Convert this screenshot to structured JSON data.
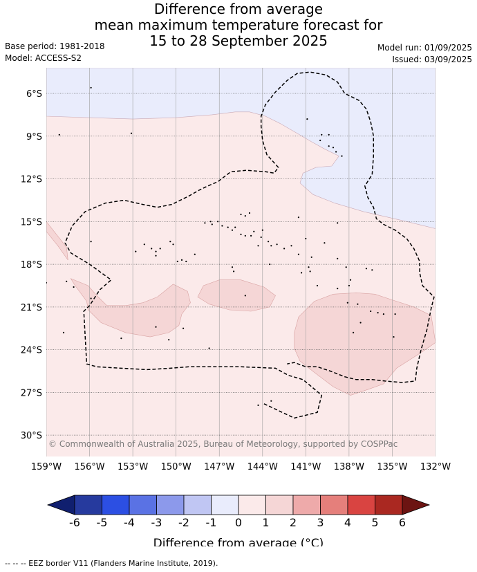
{
  "title": {
    "line1": "Difference from average",
    "line2": "mean maximum temperature forecast for",
    "line3": "15 to 28 September 2025"
  },
  "meta": {
    "base_period": "Base period: 1981-2018",
    "model": "Model: ACCESS-S2",
    "model_run": "Model run: 01/09/2025",
    "issued": "Issued: 03/09/2025"
  },
  "map": {
    "lon_range": [
      -159,
      -132
    ],
    "lat_range": [
      -31.5,
      -4.2
    ],
    "longitude_ticks": [
      {
        "value": -159,
        "label": "159°W"
      },
      {
        "value": -156,
        "label": "156°W"
      },
      {
        "value": -153,
        "label": "153°W"
      },
      {
        "value": -150,
        "label": "150°W"
      },
      {
        "value": -147,
        "label": "147°W"
      },
      {
        "value": -144,
        "label": "144°W"
      },
      {
        "value": -141,
        "label": "141°W"
      },
      {
        "value": -138,
        "label": "138°W"
      },
      {
        "value": -135,
        "label": "135°W"
      },
      {
        "value": -132,
        "label": "132°W"
      }
    ],
    "latitude_ticks": [
      {
        "value": -6,
        "label": "6°S"
      },
      {
        "value": -9,
        "label": "9°S"
      },
      {
        "value": -12,
        "label": "12°S"
      },
      {
        "value": -15,
        "label": "15°S"
      },
      {
        "value": -18,
        "label": "18°S"
      },
      {
        "value": -21,
        "label": "21°S"
      },
      {
        "value": -24,
        "label": "24°S"
      },
      {
        "value": -27,
        "label": "27°S"
      },
      {
        "value": -30,
        "label": "30°S"
      }
    ],
    "copyright": "© Commonwealth of Australia 2025, Bureau of Meteorology, supported by COSPPac",
    "background_color": "#fbeaea",
    "cool_region_color": "#e9ecfc",
    "warm_region_color": "#f5d6d6",
    "cool_regions": [
      {
        "anomaly": "-1 to 0",
        "outline": [
          [
            -159,
            -4.2
          ],
          [
            -132,
            -4.2
          ],
          [
            -132,
            -15.5
          ],
          [
            -134,
            -15
          ],
          [
            -137,
            -14.3
          ],
          [
            -139,
            -13.7
          ],
          [
            -140.5,
            -13.1
          ],
          [
            -141.4,
            -12.3
          ],
          [
            -141.2,
            -11.6
          ],
          [
            -140.3,
            -11.2
          ],
          [
            -139.2,
            -11.1
          ],
          [
            -138.7,
            -10.4
          ],
          [
            -139.7,
            -9.9
          ],
          [
            -140.6,
            -9.4
          ],
          [
            -141.6,
            -8.8
          ],
          [
            -142.8,
            -8.1
          ],
          [
            -143.8,
            -7.6
          ],
          [
            -144.9,
            -7.3
          ],
          [
            -145.9,
            -7.3
          ],
          [
            -147.5,
            -7.5
          ],
          [
            -150,
            -7.7
          ],
          [
            -153,
            -7.8
          ],
          [
            -156,
            -7.7
          ],
          [
            -159,
            -7.6
          ]
        ]
      }
    ],
    "warm_regions": [
      {
        "anomaly": "0 to 1",
        "outline": [
          [
            -159,
            -15
          ],
          [
            -157.6,
            -16.8
          ],
          [
            -157.5,
            -17.7
          ],
          [
            -158.2,
            -16.7
          ],
          [
            -159,
            -15.7
          ]
        ]
      },
      {
        "anomaly": "1 to 2",
        "outline": [
          [
            -157.3,
            -19
          ],
          [
            -157,
            -19.5
          ],
          [
            -156.2,
            -20.6
          ],
          [
            -156.1,
            -21.2
          ],
          [
            -155.2,
            -22.1
          ],
          [
            -153.5,
            -22.8
          ],
          [
            -151.8,
            -23.1
          ],
          [
            -150.5,
            -22.8
          ],
          [
            -149.8,
            -22.3
          ],
          [
            -149.6,
            -21.5
          ],
          [
            -149,
            -20.7
          ],
          [
            -149.2,
            -19.9
          ],
          [
            -150.2,
            -19.4
          ],
          [
            -151.3,
            -20.3
          ],
          [
            -152.3,
            -20.7
          ],
          [
            -153.5,
            -20.9
          ],
          [
            -154.8,
            -20.9
          ],
          [
            -155.5,
            -20.2
          ],
          [
            -156.1,
            -19.5
          ]
        ]
      },
      {
        "anomaly": "1 to 2",
        "outline": [
          [
            -148.5,
            -20.3
          ],
          [
            -147.7,
            -20.8
          ],
          [
            -146.3,
            -21.2
          ],
          [
            -144.8,
            -21.3
          ],
          [
            -143.5,
            -21
          ],
          [
            -143.1,
            -20.2
          ],
          [
            -143.9,
            -19.6
          ],
          [
            -145.5,
            -19.1
          ],
          [
            -147,
            -19.1
          ],
          [
            -148.1,
            -19.5
          ]
        ]
      },
      {
        "anomaly": "1 to 2",
        "outline": [
          [
            -141.5,
            -21.7
          ],
          [
            -140.4,
            -20.6
          ],
          [
            -139.1,
            -20.1
          ],
          [
            -137.5,
            -20
          ],
          [
            -136.2,
            -20.1
          ],
          [
            -135,
            -20.5
          ],
          [
            -133.5,
            -21
          ],
          [
            -132.3,
            -21.6
          ],
          [
            -132,
            -23.5
          ],
          [
            -133,
            -24.2
          ],
          [
            -134.7,
            -25.3
          ],
          [
            -135.6,
            -26.4
          ],
          [
            -136.7,
            -26.8
          ],
          [
            -137.9,
            -27.2
          ],
          [
            -139.1,
            -26.6
          ],
          [
            -140.4,
            -25.6
          ],
          [
            -141.4,
            -24.8
          ],
          [
            -141.8,
            -23.9
          ],
          [
            -141.8,
            -22.8
          ]
        ]
      }
    ],
    "eez_borders": [
      {
        "name": "French Polynesia EEZ",
        "outline": [
          [
            -143.9,
            -27.8
          ],
          [
            -141.8,
            -28.8
          ],
          [
            -140.2,
            -28.4
          ],
          [
            -139.9,
            -27.2
          ],
          [
            -140.6,
            -26.6
          ],
          [
            -141.2,
            -26.1
          ],
          [
            -142.2,
            -25.8
          ],
          [
            -143.1,
            -25.3
          ],
          [
            -145.5,
            -25.2
          ],
          [
            -147.5,
            -25.2
          ],
          [
            -149.1,
            -25.2
          ],
          [
            -150.4,
            -25.3
          ],
          [
            -152,
            -25.4
          ],
          [
            -153.8,
            -25.3
          ],
          [
            -155.5,
            -25.2
          ],
          [
            -156.2,
            -25
          ],
          [
            -156.4,
            -21.3
          ],
          [
            -156,
            -20.9
          ],
          [
            -155.3,
            -19.8
          ],
          [
            -154.5,
            -19.1
          ],
          [
            -156,
            -18
          ],
          [
            -157.3,
            -17.2
          ],
          [
            -157.7,
            -16.5
          ],
          [
            -157.2,
            -15.3
          ],
          [
            -156.3,
            -14.3
          ],
          [
            -154.9,
            -13.7
          ],
          [
            -153.6,
            -13.5
          ],
          [
            -152.3,
            -13.8
          ],
          [
            -151.3,
            -14
          ],
          [
            -150.3,
            -13.8
          ],
          [
            -149.1,
            -13.2
          ],
          [
            -148.4,
            -12.8
          ],
          [
            -147.8,
            -12.5
          ],
          [
            -147.1,
            -12.2
          ],
          [
            -146.2,
            -11.5
          ],
          [
            -145.1,
            -11.4
          ],
          [
            -143.8,
            -11.5
          ],
          [
            -143.2,
            -11.6
          ],
          [
            -142.9,
            -11.2
          ],
          [
            -143.7,
            -10.3
          ],
          [
            -144,
            -9.3
          ],
          [
            -144.1,
            -8.3
          ],
          [
            -144.1,
            -7.6
          ],
          [
            -143.8,
            -6.8
          ],
          [
            -143.1,
            -5.9
          ],
          [
            -142.3,
            -5.1
          ],
          [
            -141.6,
            -4.6
          ],
          [
            -140.7,
            -4.5
          ],
          [
            -139.6,
            -4.7
          ],
          [
            -138.8,
            -5.2
          ],
          [
            -138.3,
            -6
          ],
          [
            -137.3,
            -6.5
          ],
          [
            -136.8,
            -7.1
          ],
          [
            -136.5,
            -8
          ],
          [
            -136.3,
            -9
          ],
          [
            -136.3,
            -10.4
          ],
          [
            -136.4,
            -11.7
          ],
          [
            -136.9,
            -12.5
          ],
          [
            -136.7,
            -13.3
          ],
          [
            -136.3,
            -14
          ],
          [
            -136.1,
            -14.8
          ],
          [
            -135.6,
            -15.2
          ],
          [
            -134.8,
            -15.6
          ],
          [
            -134,
            -16.2
          ],
          [
            -133.5,
            -16.9
          ],
          [
            -133.1,
            -17.8
          ],
          [
            -133.1,
            -18.6
          ],
          [
            -132.9,
            -19.5
          ],
          [
            -132.1,
            -20.3
          ],
          [
            -132.3,
            -21.1
          ],
          [
            -132.6,
            -22.6
          ],
          [
            -133,
            -24
          ],
          [
            -133.3,
            -25.3
          ],
          [
            -133.4,
            -26.2
          ],
          [
            -134.3,
            -26.3
          ],
          [
            -135.5,
            -26.2
          ],
          [
            -136.4,
            -26.1
          ],
          [
            -137.5,
            -26.1
          ],
          [
            -138.3,
            -25.9
          ],
          [
            -139.3,
            -25.5
          ],
          [
            -140.2,
            -25.2
          ],
          [
            -141,
            -25.2
          ],
          [
            -141.8,
            -24.9
          ],
          [
            -142.3,
            -25
          ]
        ]
      }
    ],
    "islands": [
      [
        -155.9,
        -5.6
      ],
      [
        -153.1,
        -8.8
      ],
      [
        -158.1,
        -8.9
      ],
      [
        -155.9,
        -16.4
      ],
      [
        -152.2,
        -16.6
      ],
      [
        -151.7,
        -16.9
      ],
      [
        -151.4,
        -17.1
      ],
      [
        -151.1,
        -16.9
      ],
      [
        -150.4,
        -16.4
      ],
      [
        -150.2,
        -16.6
      ],
      [
        -151.4,
        -17.4
      ],
      [
        -152.8,
        -17.1
      ],
      [
        -149.9,
        -17.8
      ],
      [
        -149.6,
        -17.7
      ],
      [
        -149.3,
        -17.8
      ],
      [
        -148.7,
        -17.3
      ],
      [
        -148,
        -15.1
      ],
      [
        -147.5,
        -15.2
      ],
      [
        -147.6,
        -15
      ],
      [
        -147.1,
        -15
      ],
      [
        -146.8,
        -15.3
      ],
      [
        -146.4,
        -15.4
      ],
      [
        -146.1,
        -15.6
      ],
      [
        -145.9,
        -15.4
      ],
      [
        -145.5,
        -15.9
      ],
      [
        -145.2,
        -16
      ],
      [
        -145.5,
        -14.5
      ],
      [
        -145.2,
        -14.6
      ],
      [
        -144.9,
        -14.4
      ],
      [
        -144.6,
        -15.7
      ],
      [
        -144.8,
        -16
      ],
      [
        -144.1,
        -16.1
      ],
      [
        -144.3,
        -16.7
      ],
      [
        -144,
        -15.6
      ],
      [
        -143.6,
        -16.4
      ],
      [
        -143.4,
        -16.7
      ],
      [
        -143,
        -16.6
      ],
      [
        -142.5,
        -16.9
      ],
      [
        -142,
        -16.7
      ],
      [
        -141.5,
        -17.3
      ],
      [
        -141,
        -16.2
      ],
      [
        -140.6,
        -17.5
      ],
      [
        -140.8,
        -18.2
      ],
      [
        -140.7,
        -18.5
      ],
      [
        -141.3,
        -18.6
      ],
      [
        -140.2,
        -19.5
      ],
      [
        -139.7,
        -16.5
      ],
      [
        -138.8,
        -17.6
      ],
      [
        -138.2,
        -18.2
      ],
      [
        -137.9,
        -19.1
      ],
      [
        -138,
        -19.5
      ],
      [
        -138.8,
        -19.7
      ],
      [
        -137.4,
        -20.8
      ],
      [
        -138.1,
        -20.7
      ],
      [
        -137.2,
        -22.1
      ],
      [
        -137.7,
        -22.8
      ],
      [
        -136.5,
        -21.3
      ],
      [
        -136,
        -21.4
      ],
      [
        -135.6,
        -21.5
      ],
      [
        -134.8,
        -21.5
      ],
      [
        -134.9,
        -23.1
      ],
      [
        -136.8,
        -18.3
      ],
      [
        -136.4,
        -18.4
      ],
      [
        -141.5,
        -14.7
      ],
      [
        -138.8,
        -15.1
      ],
      [
        -145.2,
        -20.2
      ],
      [
        -144.3,
        -27.9
      ],
      [
        -143.4,
        -27.6
      ],
      [
        -151.4,
        -22.4
      ],
      [
        -149.5,
        -22.5
      ],
      [
        -147.7,
        -23.9
      ],
      [
        -150.5,
        -23.3
      ],
      [
        -153.8,
        -23.2
      ],
      [
        -157.8,
        -22.8
      ],
      [
        -157.1,
        -19.6
      ],
      [
        -157.6,
        -19.2
      ],
      [
        -159,
        -19.3
      ],
      [
        -155.9,
        -20.4
      ],
      [
        -140.9,
        -7.8
      ],
      [
        -140,
        -9.3
      ],
      [
        -139.1,
        -9.8
      ],
      [
        -138.9,
        -10.1
      ],
      [
        -138.5,
        -10.4
      ],
      [
        -139.4,
        -8.9
      ],
      [
        -139.9,
        -8.9
      ],
      [
        -139.4,
        -9.7
      ],
      [
        -143.5,
        -18
      ],
      [
        -146.1,
        -18.2
      ],
      [
        -146,
        -18.5
      ]
    ]
  },
  "legend": {
    "label": "Difference from average (°C)",
    "tick_labels": [
      "-6",
      "-5",
      "-4",
      "-3",
      "-2",
      "-1",
      "0",
      "1",
      "2",
      "3",
      "4",
      "5",
      "6"
    ],
    "colors": [
      "#263a9e",
      "#2c4fe3",
      "#5a72e4",
      "#8c99eb",
      "#c0c6f3",
      "#e9ecfc",
      "#fbeaea",
      "#f5d6d6",
      "#eeaaaa",
      "#e57f7b",
      "#d94441",
      "#aa2821"
    ],
    "under_color": "#101f6f",
    "over_color": "#6c1412"
  },
  "footer": "--  --  -- EEZ border V11 (Flanders Marine Institute, 2019)."
}
